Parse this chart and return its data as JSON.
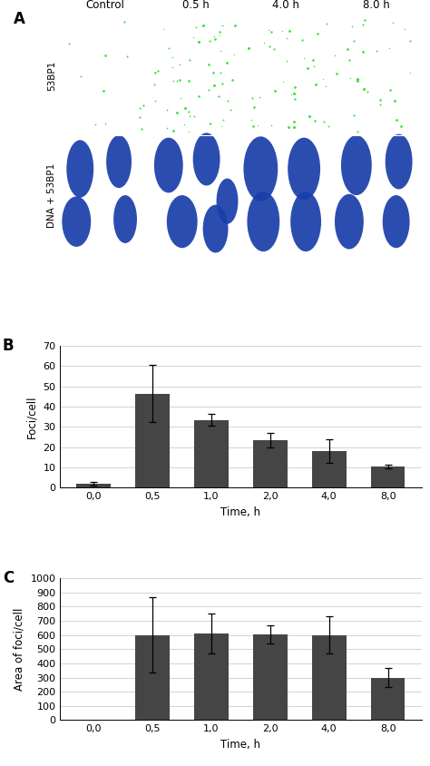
{
  "panel_A_labels_top": [
    "Control",
    "0.5 h",
    "4.0 h",
    "8.0 h"
  ],
  "panel_A_labels_left": [
    "53BP1",
    "DNA + 53BP1"
  ],
  "chart_B": {
    "categories": [
      "0,0",
      "0,5",
      "1,0",
      "2,0",
      "4,0",
      "8,0"
    ],
    "values": [
      2.0,
      46.5,
      33.5,
      23.5,
      18.0,
      10.5
    ],
    "errors": [
      1.0,
      14.0,
      3.0,
      3.5,
      6.0,
      1.0
    ],
    "ylabel": "Foci/cell",
    "xlabel": "Time, h",
    "ylim": [
      0,
      70
    ],
    "yticks": [
      0,
      10,
      20,
      30,
      40,
      50,
      60,
      70
    ],
    "bar_color": "#454545",
    "label": "B"
  },
  "chart_C": {
    "categories": [
      "0,0",
      "0,5",
      "1,0",
      "2,0",
      "4,0",
      "8,0"
    ],
    "values": [
      0,
      600,
      610,
      605,
      600,
      300
    ],
    "errors": [
      0,
      265,
      140,
      65,
      130,
      65
    ],
    "ylabel": "Area of foci/cell",
    "xlabel": "Time, h",
    "ylim": [
      0,
      1000
    ],
    "yticks": [
      0,
      100,
      200,
      300,
      400,
      500,
      600,
      700,
      800,
      900,
      1000
    ],
    "bar_color": "#454545",
    "label": "C"
  },
  "bg_color": "#ffffff",
  "grid_color": "#cccccc"
}
